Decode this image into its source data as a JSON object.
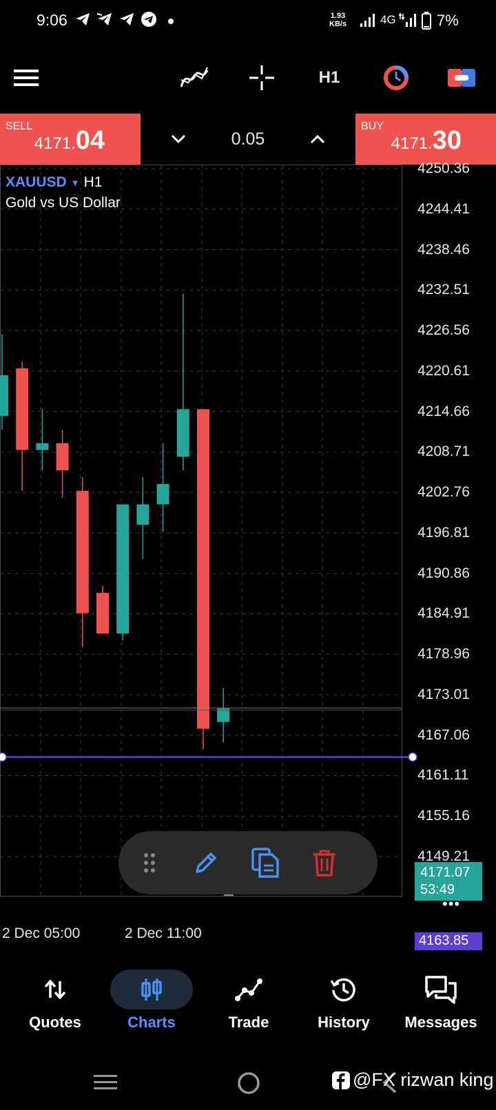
{
  "status_bar": {
    "time": "9:06",
    "speed_value": "1.93",
    "speed_unit": "KB/s",
    "network": "4G",
    "battery": "7%"
  },
  "toolbar": {
    "menu_icon": "hamburger-icon",
    "indicators_icon": "indicators-icon",
    "crosshair_icon": "crosshair-icon",
    "timeframe": "H1",
    "trade_icon": "one-click-trading-icon",
    "objects_icon": "objects-icon"
  },
  "trade_panel": {
    "sell_label": "SELL",
    "sell_price_small": "4171.",
    "sell_price_big": "04",
    "volume": "0.05",
    "buy_label": "BUY",
    "buy_price_small": "4171.",
    "buy_price_big": "30"
  },
  "chart": {
    "symbol": "XAUUSD",
    "timeframe": "H1",
    "description": "Gold vs US Dollar",
    "current_price": "4171.07",
    "countdown": "53:49",
    "line_price": "4163.85",
    "more_label": "•••",
    "colors": {
      "bull": "#26a69a",
      "bear": "#ef5350",
      "grid": "#3a3a3a",
      "line": "#5b3fcf"
    }
  },
  "chart_data": {
    "type": "candlestick",
    "price_axis": [
      "4250.36",
      "4244.41",
      "4238.46",
      "4232.51",
      "4226.56",
      "4220.61",
      "4214.66",
      "4208.71",
      "4202.76",
      "4196.81",
      "4190.86",
      "4184.91",
      "4178.96",
      "4173.01",
      "4167.06",
      "4161.11",
      "4155.16",
      "4149.21"
    ],
    "time_axis": [
      "2 Dec 05:00",
      "2 Dec 11:00"
    ],
    "ylim": [
      4146.5,
      4253
    ],
    "candles": [
      {
        "o": 4214,
        "h": 4226,
        "l": 4212,
        "c": 4220
      },
      {
        "o": 4221,
        "h": 4222,
        "l": 4203,
        "c": 4209
      },
      {
        "o": 4209,
        "h": 4215,
        "l": 4206,
        "c": 4210
      },
      {
        "o": 4210,
        "h": 4212,
        "l": 4202,
        "c": 4206
      },
      {
        "o": 4203,
        "h": 4205,
        "l": 4180,
        "c": 4185
      },
      {
        "o": 4188,
        "h": 4189,
        "l": 4182,
        "c": 4182
      },
      {
        "o": 4182,
        "h": 4201,
        "l": 4181,
        "c": 4201
      },
      {
        "o": 4198,
        "h": 4205,
        "l": 4193,
        "c": 4201
      },
      {
        "o": 4201,
        "h": 4210,
        "l": 4197,
        "c": 4204
      },
      {
        "o": 4208,
        "h": 4232,
        "l": 4206,
        "c": 4215
      },
      {
        "o": 4215,
        "h": 4215,
        "l": 4165,
        "c": 4168
      },
      {
        "o": 4169,
        "h": 4174,
        "l": 4166,
        "c": 4171
      }
    ]
  },
  "draw_toolbar": {
    "drag_icon": "drag-handle-icon",
    "edit_icon": "pencil-icon",
    "copy_icon": "copy-icon",
    "delete_icon": "trash-icon"
  },
  "bottom_nav": {
    "items": [
      {
        "label": "Quotes",
        "icon": "quotes-icon"
      },
      {
        "label": "Charts",
        "icon": "charts-icon"
      },
      {
        "label": "Trade",
        "icon": "trade-icon"
      },
      {
        "label": "History",
        "icon": "history-icon"
      },
      {
        "label": "Messages",
        "icon": "messages-icon"
      }
    ],
    "active": "Charts"
  },
  "watermark": "@FX rizwan king"
}
